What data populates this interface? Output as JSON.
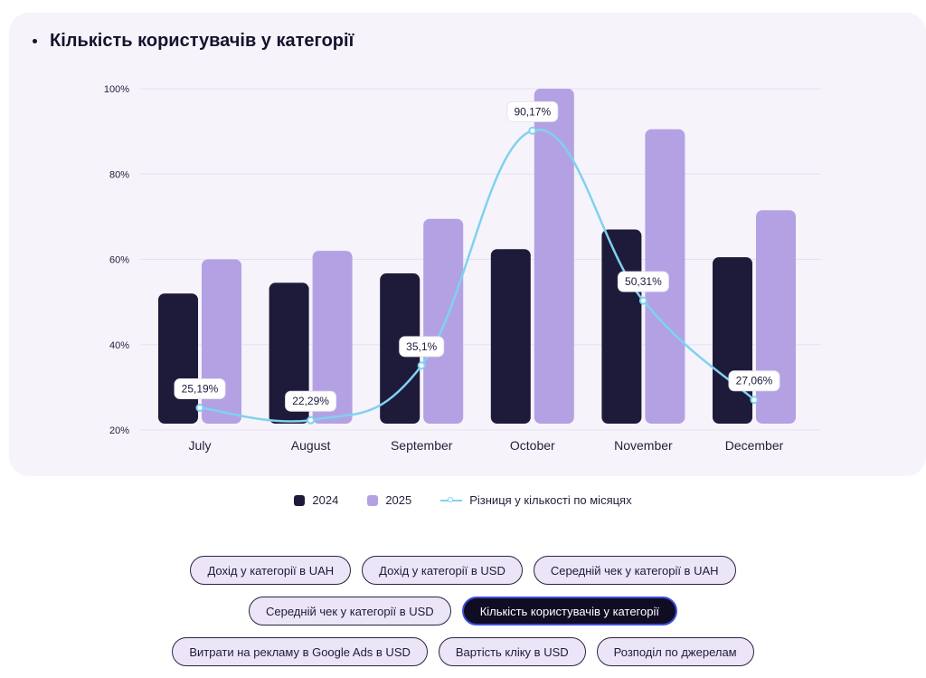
{
  "chart_title": "Кількість користувачів у категорії",
  "chart_data": {
    "type": "bar",
    "categories": [
      "July",
      "August",
      "September",
      "October",
      "November",
      "December"
    ],
    "series": [
      {
        "name": "2024",
        "values": [
          52,
          54.5,
          56.7,
          62.4,
          67,
          60.5
        ],
        "color": "#1e1a3a"
      },
      {
        "name": "2025",
        "values": [
          60,
          62,
          69.5,
          100,
          90.5,
          71.5
        ],
        "color": "#b3a1e4"
      }
    ],
    "line_series": {
      "name": "Різниця у кількості по місяцях",
      "values": [
        25.19,
        22.29,
        35.1,
        90.17,
        50.31,
        27.06
      ],
      "labels": [
        "25,19%",
        "22,29%",
        "35,1%",
        "90,17%",
        "50,31%",
        "27,06%"
      ],
      "color": "#7fd2ef"
    },
    "yticks": [
      20,
      40,
      60,
      80,
      100
    ],
    "ytick_labels": [
      "20%",
      "40%",
      "60%",
      "80%",
      "100%"
    ],
    "ylim": [
      20,
      100
    ],
    "grid": true,
    "legend_position": "bottom-center"
  },
  "legend": {
    "item1": "2024",
    "item2": "2025",
    "item3": "Різниця у кількості по місяцях"
  },
  "tabs": [
    [
      "Дохід у категорії в UAH",
      "Дохід у категорії в USD",
      "Середній чек у категорії в UAH"
    ],
    [
      "Середній чек у категорії в USD",
      "Кількість користувачів у категорії"
    ],
    [
      "Витрати на рекламу в Google Ads в USD",
      "Вартість кліку в USD",
      "Розподіл по джерелам"
    ]
  ],
  "active_tab": "Кількість користувачів у категорії"
}
